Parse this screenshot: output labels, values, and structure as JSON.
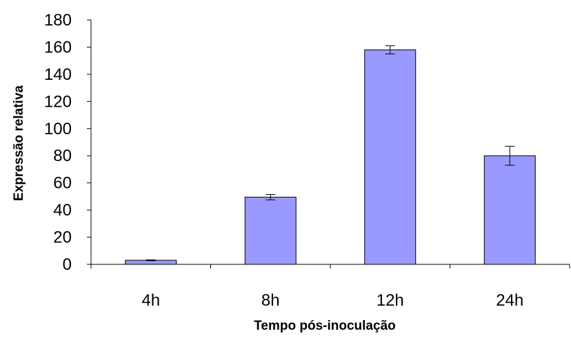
{
  "chart_data": {
    "type": "bar",
    "title": "",
    "xlabel": "Tempo pós-inoculação",
    "ylabel": "Expressão relativa",
    "categories": [
      "4h",
      "8h",
      "12h",
      "24h"
    ],
    "values": [
      3,
      49.5,
      158,
      80
    ],
    "error": [
      0.3,
      2,
      3,
      7
    ],
    "ylim": [
      0,
      180
    ],
    "yticks": [
      0,
      20,
      40,
      60,
      80,
      100,
      120,
      140,
      160,
      180
    ],
    "grid": false,
    "legend": "none",
    "colors": {
      "bar_fill": "#9999ff",
      "bar_stroke": "#000000",
      "axis": "#000000"
    }
  }
}
